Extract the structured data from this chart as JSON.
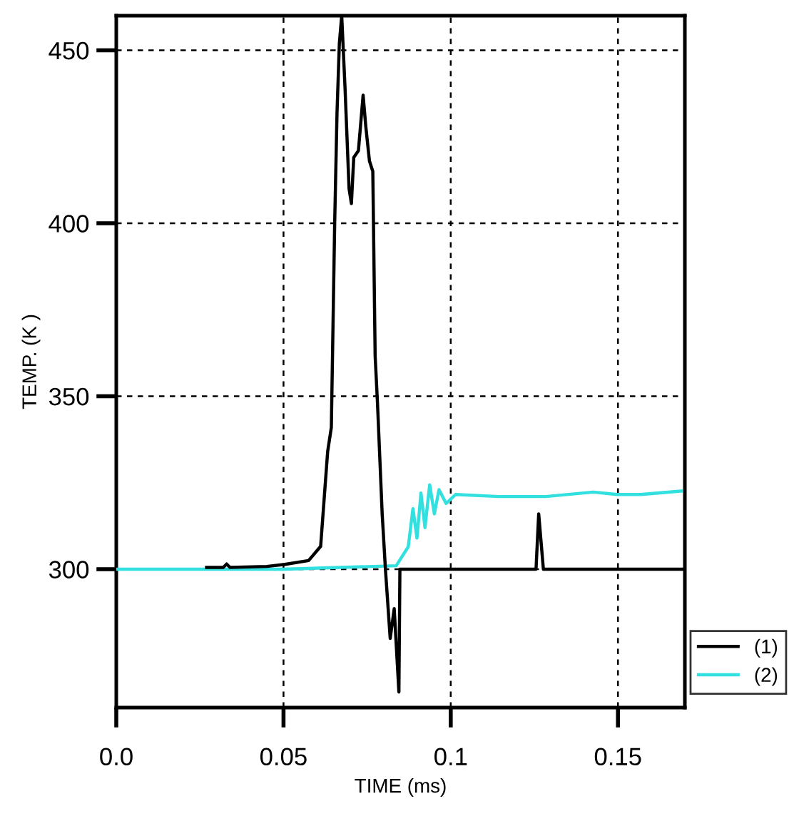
{
  "chart_data": {
    "type": "line",
    "xlabel": "TIME (ms)",
    "ylabel": "TEMP. (K )",
    "xlim": [
      0,
      0.17
    ],
    "ylim": [
      260,
      460
    ],
    "xticks": [
      {
        "value": 0,
        "label": "0.0"
      },
      0.05,
      0.1,
      0.15
    ],
    "yticks": [
      300,
      350,
      400,
      450
    ],
    "grid": true,
    "legend": "bottom right",
    "line_style": "solid",
    "marker": "none",
    "series": [
      {
        "name": "(1)",
        "color": "#000000",
        "x": [
          0.027,
          0.032,
          0.033,
          0.034,
          0.045,
          0.0504,
          0.0575,
          0.0611,
          0.0632,
          0.0643,
          0.0653,
          0.066,
          0.0667,
          0.0674,
          0.0684,
          0.0696,
          0.0703,
          0.071,
          0.0724,
          0.0738,
          0.0746,
          0.0757,
          0.0767,
          0.0774,
          0.0781,
          0.0795,
          0.0805,
          0.0819,
          0.0831,
          0.0845,
          0.0848,
          0.1255,
          0.1263,
          0.1277,
          0.17
        ],
        "values": [
          300.5,
          300.5,
          301.5,
          300.5,
          300.8,
          301.4,
          302.5,
          306.6,
          334,
          341,
          400,
          432,
          452,
          460,
          439,
          410,
          405.7,
          419,
          421,
          437,
          428,
          418,
          415,
          361.6,
          348,
          316,
          299.6,
          280,
          288.6,
          264.5,
          300,
          300,
          316,
          300,
          300
        ]
      },
      {
        "name": "(2)",
        "color": "#33e0e0",
        "x": [
          0,
          0.05,
          0.0837,
          0.0873,
          0.0887,
          0.0899,
          0.0911,
          0.0923,
          0.0937,
          0.0951,
          0.0965,
          0.0986,
          0.1015,
          0.1143,
          0.1284,
          0.1426,
          0.1497,
          0.1568,
          0.1689
        ],
        "values": [
          300,
          300,
          301,
          306.5,
          317.5,
          309,
          322,
          312,
          324.4,
          316,
          323,
          319,
          321.6,
          321,
          321,
          322.3,
          321.6,
          321.6,
          322.6
        ]
      }
    ]
  }
}
